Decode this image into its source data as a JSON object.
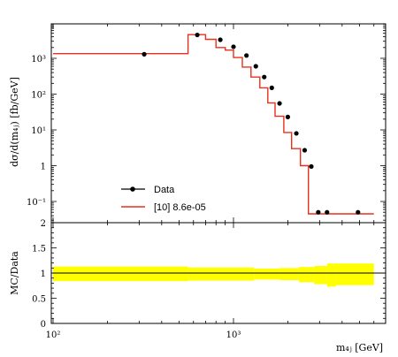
{
  "chart_data": {
    "type": "line",
    "x_bin_edges": [
      100,
      560,
      700,
      800,
      900,
      1000,
      1120,
      1250,
      1400,
      1550,
      1700,
      1900,
      2100,
      2350,
      2600,
      2800,
      3100,
      3500,
      6000
    ],
    "series": [
      {
        "name": "Data",
        "style": "points",
        "x": [
          320,
          630,
          845,
          1000,
          1180,
          1330,
          1480,
          1630,
          1800,
          2000,
          2230,
          2480,
          2700,
          2950,
          3300,
          4900
        ],
        "y": [
          1300,
          4500,
          3300,
          2100,
          1200,
          600,
          300,
          150,
          55,
          23,
          8,
          2.7,
          0.95,
          0.05,
          0.05,
          0.05
        ]
      },
      {
        "name": "[10] 8.6e-05",
        "style": "step",
        "y": [
          1350,
          4600,
          3400,
          2000,
          1700,
          1050,
          570,
          300,
          150,
          57,
          24,
          8.5,
          3.0,
          1.0,
          0.045,
          0.045,
          0.045,
          0.045
        ]
      }
    ],
    "ratio": {
      "x_edges": [
        100,
        560,
        1300,
        1800,
        2300,
        2800,
        3300,
        3700,
        6000
      ],
      "yellow_band_upper": [
        1.13,
        1.11,
        1.09,
        1.1,
        1.12,
        1.14,
        1.19,
        1.19
      ],
      "yellow_band_lower": [
        0.84,
        0.85,
        0.87,
        0.86,
        0.82,
        0.78,
        0.73,
        0.76
      ],
      "value": 1.0
    },
    "main_yticks": [
      "10³",
      "10²",
      "10¹",
      "1",
      "10⁻¹"
    ],
    "main_yticks_exp": [
      3,
      2,
      1,
      0,
      -1
    ],
    "ratio_yticks": [
      "0",
      "0.5",
      "1",
      "1.5",
      "2"
    ],
    "xticks": [
      "10²",
      "10³"
    ],
    "xtick_values": [
      100,
      1000
    ],
    "xlabel": "m₄ⱼ [GeV]",
    "ylabel": "dσ/d(m₄ⱼ) [fb/GeV]",
    "ratio_ylabel": "MC/Data",
    "legend_placement": "bottom-left",
    "colors": {
      "data": "#000000",
      "mc": "#e8301c",
      "band": "#ffff00"
    }
  }
}
